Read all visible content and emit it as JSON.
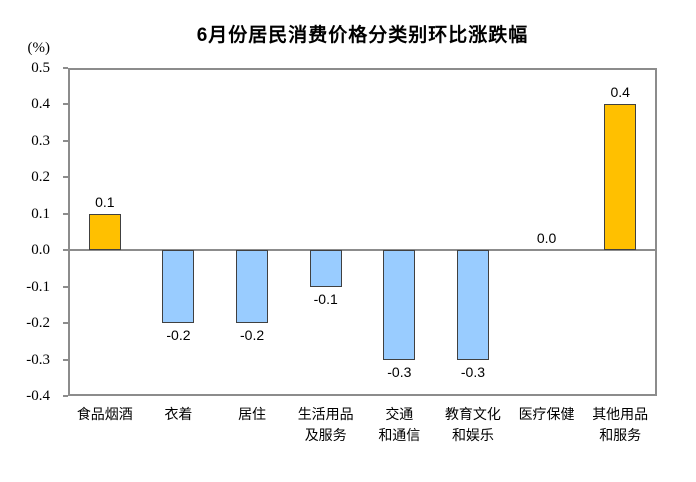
{
  "chart_data": {
    "type": "bar",
    "title": "6月份居民消费价格分类别环比涨跌幅",
    "ylabel": "(%)",
    "categories": [
      "食品烟酒",
      "衣着",
      "居住",
      "生活用品\n及服务",
      "交通\n和通信",
      "教育文化\n和娱乐",
      "医疗保健",
      "其他用品\n和服务"
    ],
    "values": [
      0.1,
      -0.2,
      -0.2,
      -0.1,
      -0.3,
      -0.3,
      0.0,
      0.4
    ],
    "value_labels": [
      "0.1",
      "-0.2",
      "-0.2",
      "-0.1",
      "-0.3",
      "-0.3",
      "0.0",
      "0.4"
    ],
    "ylim": [
      -0.4,
      0.5
    ],
    "yticks": [
      "0.5",
      "0.4",
      "0.3",
      "0.2",
      "0.1",
      "0.0",
      "-0.1",
      "-0.2",
      "-0.3",
      "-0.4"
    ],
    "grid": "off",
    "legend": "none",
    "colors": {
      "positive_bar": "#FFC000",
      "negative_bar": "#99CCFF",
      "bar_border": "#404040",
      "axis_line": "#8c8c8c",
      "text": "#000000"
    }
  }
}
